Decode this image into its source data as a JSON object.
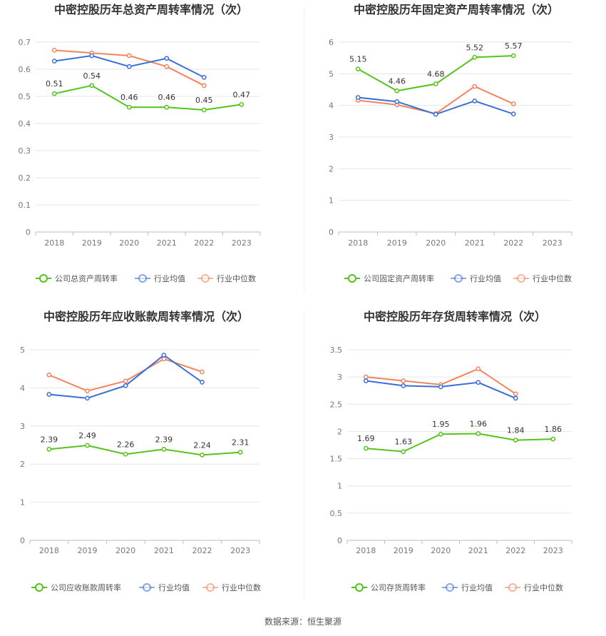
{
  "colors": {
    "company": "#52c41a",
    "avg": "#3a6fd8",
    "median": "#f2845c"
  },
  "source_text": "数据来源：恒生聚源",
  "chart_data": [
    {
      "type": "line",
      "title": "中密控股历年总资产周转率情况（次）",
      "categories": [
        "2018",
        "2019",
        "2020",
        "2021",
        "2022",
        "2023"
      ],
      "ylim": [
        0,
        0.7
      ],
      "yticks": [
        "0",
        "0.1",
        "0.2",
        "0.3",
        "0.4",
        "0.5",
        "0.6",
        "0.7"
      ],
      "grid": true,
      "legend_position": "bottom",
      "series": [
        {
          "name": "公司总资产周转率",
          "color": "#52c41a",
          "values": [
            0.51,
            0.54,
            0.46,
            0.46,
            0.45,
            0.47
          ],
          "labels": [
            "0.51",
            "0.54",
            "0.46",
            "0.46",
            "0.45",
            "0.47"
          ]
        },
        {
          "name": "行业均值",
          "color": "#3a6fd8",
          "values": [
            0.63,
            0.65,
            0.61,
            0.64,
            0.57,
            null
          ]
        },
        {
          "name": "行业中位数",
          "color": "#f2845c",
          "values": [
            0.67,
            0.66,
            0.65,
            0.61,
            0.54,
            null
          ]
        }
      ]
    },
    {
      "type": "line",
      "title": "中密控股历年固定资产周转率情况（次）",
      "categories": [
        "2018",
        "2019",
        "2020",
        "2021",
        "2022",
        "2023"
      ],
      "ylim": [
        0,
        6
      ],
      "yticks": [
        "0",
        "1",
        "2",
        "3",
        "4",
        "5",
        "6"
      ],
      "grid": true,
      "legend_position": "bottom",
      "series": [
        {
          "name": "公司固定资产周转率",
          "color": "#52c41a",
          "values": [
            5.15,
            4.46,
            4.68,
            5.52,
            5.57,
            null
          ],
          "labels": [
            "5.15",
            "4.46",
            "4.68",
            "5.52",
            "5.57",
            ""
          ]
        },
        {
          "name": "行业均值",
          "color": "#3a6fd8",
          "values": [
            4.25,
            4.12,
            3.72,
            4.14,
            3.73,
            null
          ]
        },
        {
          "name": "行业中位数",
          "color": "#f2845c",
          "values": [
            4.16,
            4.02,
            3.74,
            4.6,
            4.05,
            null
          ]
        }
      ]
    },
    {
      "type": "line",
      "title": "中密控股历年应收账款周转率情况（次）",
      "categories": [
        "2018",
        "2019",
        "2020",
        "2021",
        "2022",
        "2023"
      ],
      "ylim": [
        0,
        5
      ],
      "yticks": [
        "0",
        "1",
        "2",
        "3",
        "4",
        "5"
      ],
      "grid": true,
      "legend_position": "bottom",
      "series": [
        {
          "name": "公司应收账款周转率",
          "color": "#52c41a",
          "values": [
            2.39,
            2.49,
            2.26,
            2.39,
            2.24,
            2.31
          ],
          "labels": [
            "2.39",
            "2.49",
            "2.26",
            "2.39",
            "2.24",
            "2.31"
          ]
        },
        {
          "name": "行业均值",
          "color": "#3a6fd8",
          "values": [
            3.83,
            3.73,
            4.06,
            4.86,
            4.15,
            null
          ]
        },
        {
          "name": "行业中位数",
          "color": "#f2845c",
          "values": [
            4.34,
            3.92,
            4.18,
            4.76,
            4.42,
            null
          ]
        }
      ]
    },
    {
      "type": "line",
      "title": "中密控股历年存货周转率情况（次）",
      "categories": [
        "2018",
        "2019",
        "2020",
        "2021",
        "2022",
        "2023"
      ],
      "ylim": [
        0,
        3.5
      ],
      "yticks": [
        "0",
        "0.5",
        "1",
        "1.5",
        "2",
        "2.5",
        "3",
        "3.5"
      ],
      "grid": true,
      "legend_position": "bottom",
      "series": [
        {
          "name": "公司存货周转率",
          "color": "#52c41a",
          "values": [
            1.69,
            1.63,
            1.95,
            1.96,
            1.84,
            1.86
          ],
          "labels": [
            "1.69",
            "1.63",
            "1.95",
            "1.96",
            "1.84",
            "1.86"
          ]
        },
        {
          "name": "行业均值",
          "color": "#3a6fd8",
          "values": [
            2.93,
            2.84,
            2.82,
            2.9,
            2.61,
            null
          ]
        },
        {
          "name": "行业中位数",
          "color": "#f2845c",
          "values": [
            3.0,
            2.93,
            2.86,
            3.15,
            2.69,
            null
          ]
        }
      ]
    }
  ]
}
